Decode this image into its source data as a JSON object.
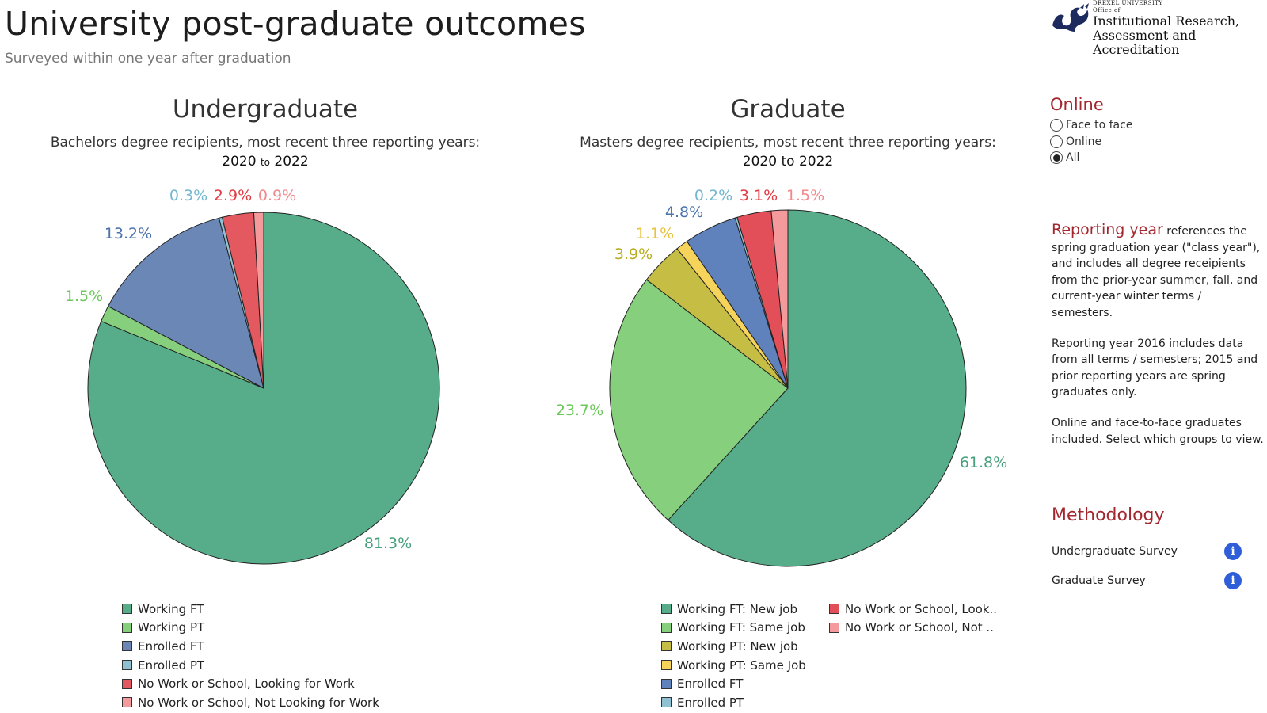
{
  "page": {
    "title": "University post-graduate outcomes",
    "subtitle": "Surveyed within one year after graduation"
  },
  "logo": {
    "small_top": "DREXEL UNIVERSITY",
    "office": "Office of",
    "line1": "Institutional Research,",
    "line2": "Assessment and",
    "line3": "Accreditation"
  },
  "filter": {
    "title": "Online",
    "options": [
      "Face to face",
      "Online",
      "All"
    ],
    "selected": "All"
  },
  "notes": {
    "reporting_year_label": "Reporting year",
    "reporting_year_text": " references the spring graduation year (\"class year\"), and includes all degree receipients from the prior-year summer, fall, and current-year winter terms / semesters.",
    "p2": "Reporting year 2016 includes data from all terms / semesters; 2015 and prior reporting years are spring graduates only.",
    "p3": "Online and face-to-face graduates included. Select which groups to view."
  },
  "methodology": {
    "title": "Methodology",
    "rows": [
      "Undergraduate Survey",
      "Graduate Survey"
    ],
    "info_glyph": "i"
  },
  "chart_data": [
    {
      "type": "pie",
      "title": "Undergraduate",
      "subtitle": "Bachelors degree recipients, most recent three reporting years:",
      "year_from": "2020",
      "year_to": "2022",
      "range_connector": "to",
      "categories": [
        "Working FT",
        "Working PT",
        "Enrolled FT",
        "Enrolled PT",
        "No Work or School, Looking for Work",
        "No Work or School, Not Looking for Work"
      ],
      "values": [
        81.3,
        1.5,
        13.2,
        0.3,
        2.9,
        0.9
      ],
      "labels": [
        "81.3%",
        "1.5%",
        "13.2%",
        "0.3%",
        "2.9%",
        "0.9%"
      ],
      "colors": [
        "#57ad8a",
        "#86d07d",
        "#6a87b6",
        "#8fc1d2",
        "#e4585f",
        "#f59a9c"
      ],
      "label_colors": [
        "#48a07e",
        "#6cc85a",
        "#4a72ab",
        "#74b8d0",
        "#e23c43",
        "#f28a8d"
      ],
      "legend": [
        "Working FT",
        "Working PT",
        "Enrolled FT",
        "Enrolled PT",
        "No Work or School, Looking for Work",
        "No Work or School, Not Looking for Work"
      ]
    },
    {
      "type": "pie",
      "title": "Graduate",
      "subtitle": "Masters degree recipients, most recent three reporting years:",
      "year_from": "2020",
      "year_to": "2022",
      "range_connector": "to",
      "categories": [
        "Working FT: New job",
        "Working FT: Same job",
        "Working PT: New job",
        "Working PT: Same Job",
        "Enrolled FT",
        "Enrolled PT",
        "No Work or School, Look..",
        "No Work or School, Not .."
      ],
      "values": [
        61.8,
        23.7,
        3.9,
        1.1,
        4.8,
        0.2,
        3.1,
        1.5
      ],
      "labels": [
        "61.8%",
        "23.7%",
        "3.9%",
        "1.1%",
        "4.8%",
        "0.2%",
        "3.1%",
        "1.5%"
      ],
      "colors": [
        "#57ad8a",
        "#86d07d",
        "#c6be44",
        "#f6d35a",
        "#5f82bd",
        "#8fc1d2",
        "#e24f58",
        "#f59a9c"
      ],
      "label_colors": [
        "#48a07e",
        "#6cc85a",
        "#b8ac1e",
        "#e9c23d",
        "#4a72ab",
        "#74b8d0",
        "#e23c43",
        "#f28a8d"
      ],
      "legend": [
        "Working FT: New job",
        "Working FT: Same job",
        "Working PT: New job",
        "Working PT: Same Job",
        "Enrolled FT",
        "Enrolled PT",
        "No Work or School, Look..",
        "No Work or School, Not .."
      ]
    }
  ]
}
